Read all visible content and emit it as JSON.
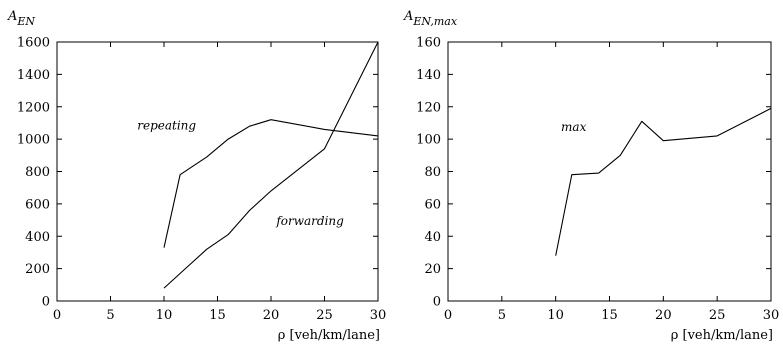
{
  "chart_data": [
    {
      "type": "line",
      "ylabel_main": "A",
      "ylabel_sub": "EN",
      "xlabel": "ρ [veh/km/lane]",
      "xlim": [
        0,
        30
      ],
      "ylim": [
        0,
        1600
      ],
      "xticks": [
        0,
        5,
        10,
        15,
        20,
        25,
        30
      ],
      "yticks": [
        0,
        200,
        400,
        600,
        800,
        1000,
        1200,
        1400,
        1600
      ],
      "grid": false,
      "series": [
        {
          "name": "repeating",
          "label_anchor": {
            "x": 7.5,
            "y": 1060
          },
          "x": [
            10,
            11.5,
            14,
            16,
            18,
            20,
            25,
            30
          ],
          "y": [
            330,
            780,
            890,
            1000,
            1080,
            1120,
            1060,
            1020
          ]
        },
        {
          "name": "forwarding",
          "label_anchor": {
            "x": 20.5,
            "y": 470
          },
          "x": [
            10,
            12,
            14,
            16,
            18,
            20,
            25,
            30
          ],
          "y": [
            80,
            200,
            320,
            410,
            560,
            680,
            940,
            1600
          ]
        }
      ]
    },
    {
      "type": "line",
      "ylabel_main": "A",
      "ylabel_sub": "EN,max",
      "xlabel": "ρ [veh/km/lane]",
      "xlim": [
        0,
        30
      ],
      "ylim": [
        0,
        160
      ],
      "xticks": [
        0,
        5,
        10,
        15,
        20,
        25,
        30
      ],
      "yticks": [
        0,
        20,
        40,
        60,
        80,
        100,
        120,
        140,
        160
      ],
      "grid": false,
      "series": [
        {
          "name": "max",
          "label_anchor": {
            "x": 10.5,
            "y": 105
          },
          "x": [
            10,
            11.5,
            14,
            16,
            18,
            20,
            25,
            30
          ],
          "y": [
            28,
            78,
            79,
            90,
            111,
            99,
            102,
            119
          ]
        }
      ]
    }
  ]
}
